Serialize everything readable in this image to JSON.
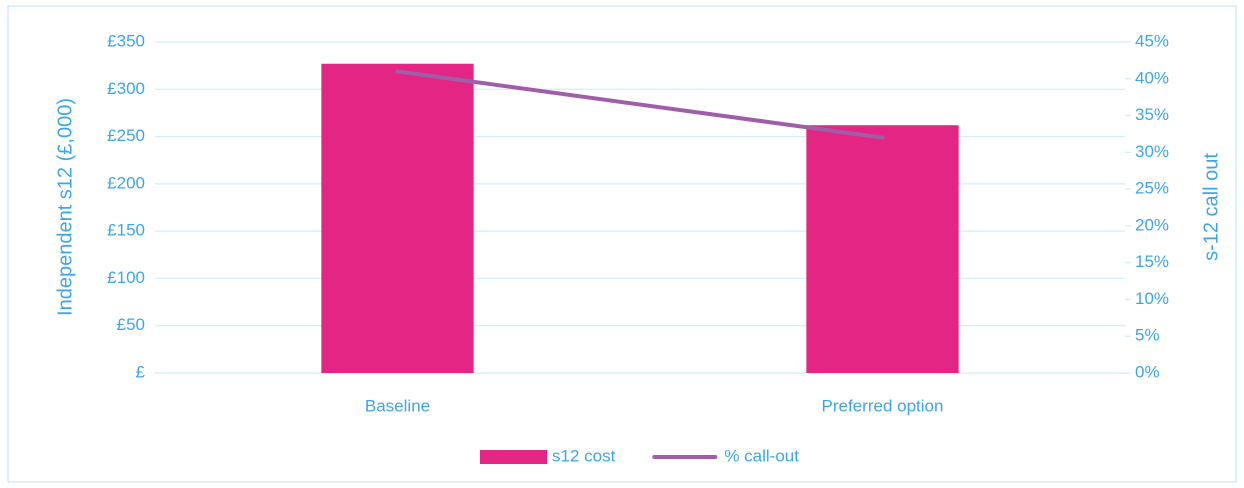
{
  "chart_data": {
    "type": "bar",
    "categories": [
      "Baseline",
      "Preferred option"
    ],
    "series": [
      {
        "name": "s12 cost",
        "type": "bar",
        "color": "#e32584",
        "values": [
          327,
          262
        ]
      },
      {
        "name": "% call-out",
        "type": "line",
        "color": "#a05ea8",
        "axis": "y2",
        "values": [
          41,
          32
        ]
      }
    ],
    "ylabel": "Independent s12 (£,000)",
    "y2label": "s-12 call out",
    "ylim": [
      0,
      350
    ],
    "yticks": [
      {
        "value": 0,
        "label": "£"
      },
      {
        "value": 50,
        "label": "£50"
      },
      {
        "value": 100,
        "label": "£100"
      },
      {
        "value": 150,
        "label": "£150"
      },
      {
        "value": 200,
        "label": "£200"
      },
      {
        "value": 250,
        "label": "£250"
      },
      {
        "value": 300,
        "label": "£300"
      },
      {
        "value": 350,
        "label": "£350"
      }
    ],
    "y2lim": [
      0,
      45
    ],
    "y2ticks": [
      {
        "value": 0,
        "label": "0%"
      },
      {
        "value": 5,
        "label": "5%"
      },
      {
        "value": 10,
        "label": "10%"
      },
      {
        "value": 15,
        "label": "15%"
      },
      {
        "value": 20,
        "label": "20%"
      },
      {
        "value": 25,
        "label": "25%"
      },
      {
        "value": 30,
        "label": "30%"
      },
      {
        "value": 35,
        "label": "35%"
      },
      {
        "value": 40,
        "label": "40%"
      },
      {
        "value": 45,
        "label": "45%"
      }
    ],
    "grid": true,
    "legend": "bottom"
  }
}
